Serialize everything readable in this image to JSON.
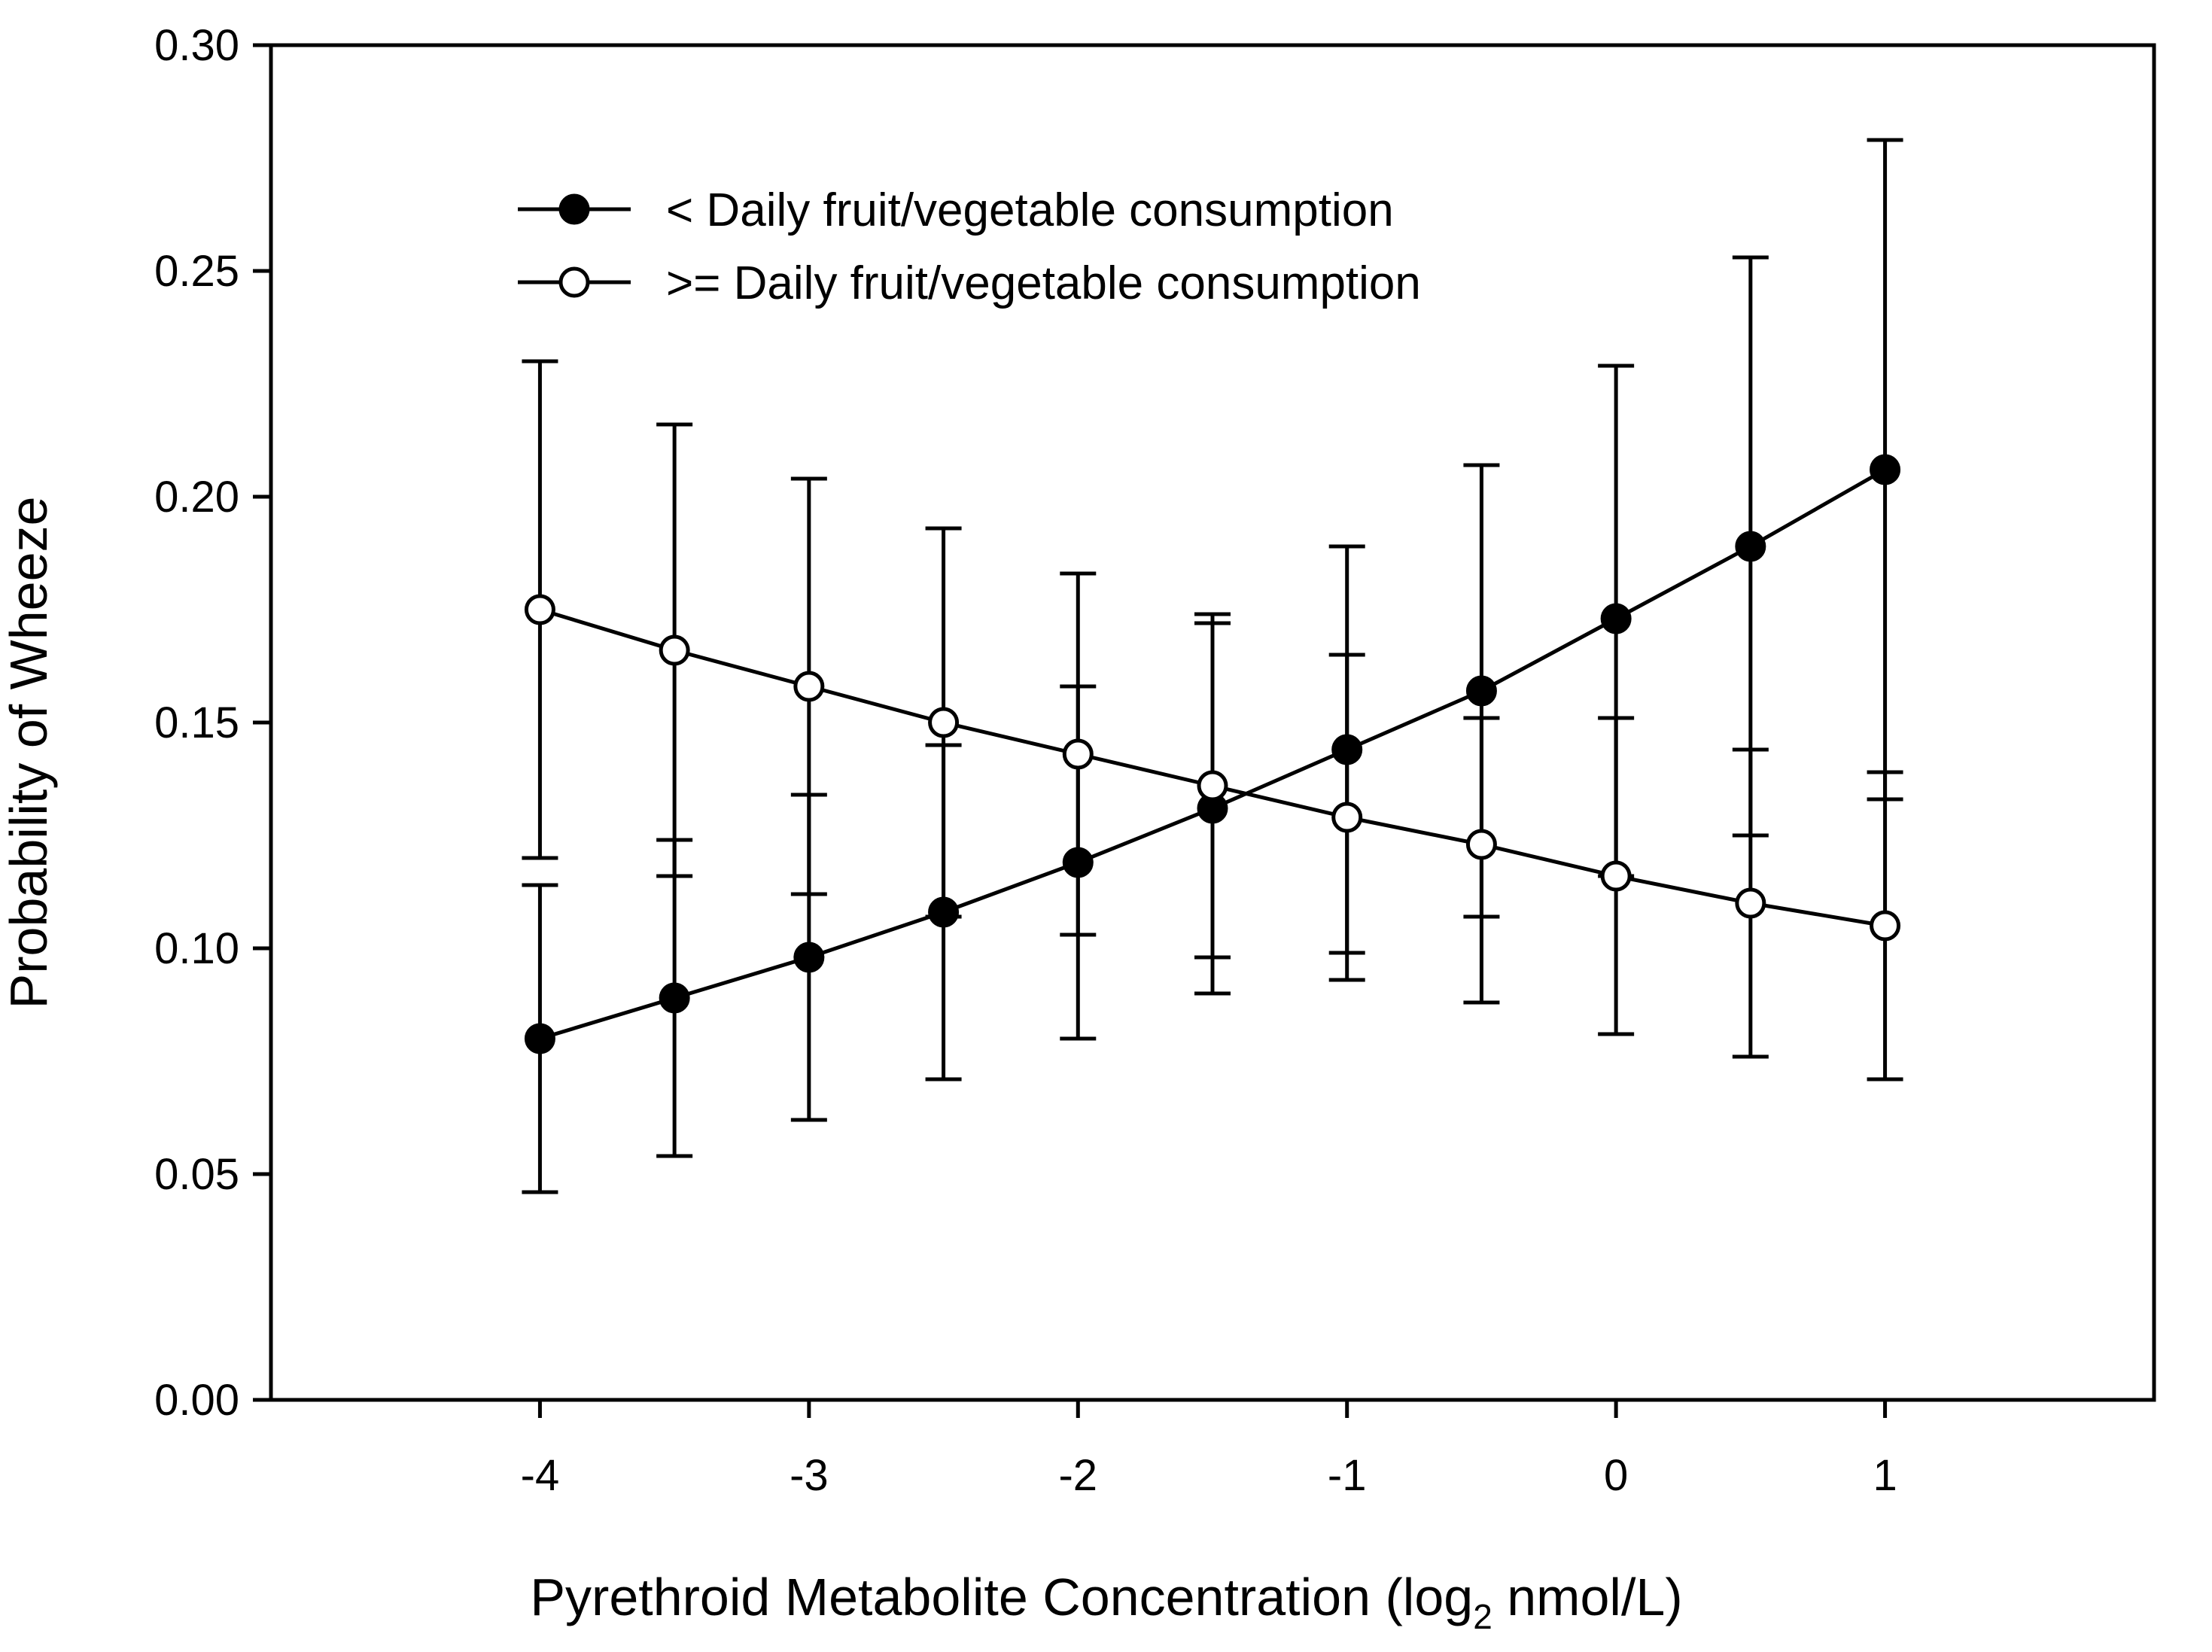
{
  "chart_data": {
    "type": "line",
    "title": "",
    "xlabel": "Pyrethroid Metabolite Concentration (log",
    "xlabel_subscript": "2",
    "xlabel_suffix": " nmol/L)",
    "ylabel": "Probability of Wheeze",
    "xlim": [
      -5,
      2
    ],
    "ylim": [
      0,
      0.3
    ],
    "x_ticks": [
      -4,
      -3,
      -2,
      -1,
      0,
      1
    ],
    "x_tick_labels": [
      "-4",
      "-3",
      "-2",
      "-1",
      "0",
      "1"
    ],
    "y_ticks": [
      0,
      0.05,
      0.1,
      0.15,
      0.2,
      0.25,
      0.3
    ],
    "y_tick_labels": [
      "0.00",
      "0.05",
      "0.10",
      "0.15",
      "0.20",
      "0.25",
      "0.30"
    ],
    "grid": false,
    "legend_position": "top-left",
    "x": [
      -4,
      -3.5,
      -3,
      -2.5,
      -2,
      -1.5,
      -1,
      -0.5,
      0,
      0.5,
      1
    ],
    "series": [
      {
        "name": "< Daily fruit/vegetable consumption",
        "marker": "filled-circle",
        "marker_color": "#000000",
        "values": [
          0.08,
          0.089,
          0.098,
          0.108,
          0.119,
          0.131,
          0.144,
          0.157,
          0.173,
          0.189,
          0.206
        ],
        "lower": [
          0.046,
          0.054,
          0.062,
          0.071,
          0.08,
          0.09,
          0.099,
          0.107,
          0.116,
          0.125,
          0.133
        ],
        "upper": [
          0.114,
          0.124,
          0.134,
          0.145,
          0.158,
          0.172,
          0.189,
          0.207,
          0.229,
          0.253,
          0.279
        ]
      },
      {
        "name": ">= Daily fruit/vegetable consumption",
        "marker": "open-circle",
        "marker_color": "#ffffff",
        "values": [
          0.175,
          0.166,
          0.158,
          0.15,
          0.143,
          0.136,
          0.129,
          0.123,
          0.116,
          0.11,
          0.105
        ],
        "lower": [
          0.12,
          0.116,
          0.112,
          0.107,
          0.103,
          0.098,
          0.093,
          0.088,
          0.081,
          0.076,
          0.071
        ],
        "upper": [
          0.23,
          0.216,
          0.204,
          0.193,
          0.183,
          0.174,
          0.165,
          0.151,
          0.151,
          0.144,
          0.139
        ]
      }
    ]
  }
}
